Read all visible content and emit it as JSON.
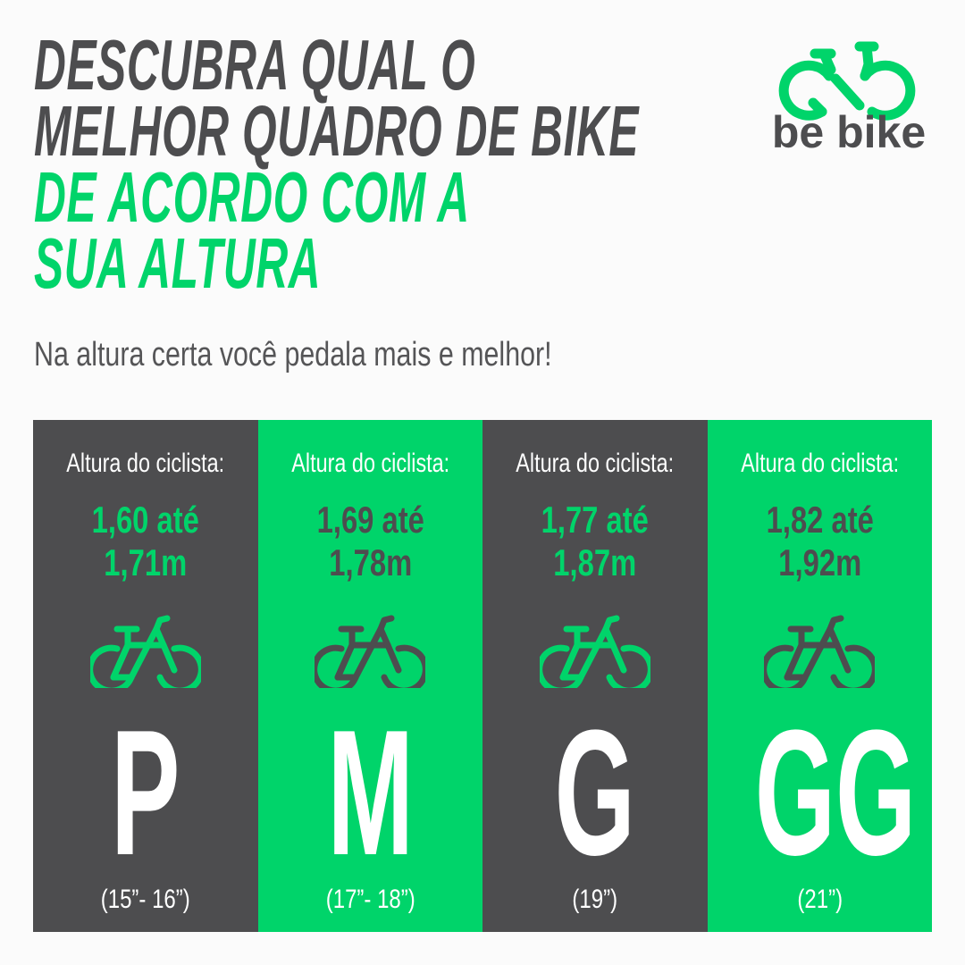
{
  "title": {
    "lines": [
      "DESCUBRA QUAL O",
      "MELHOR QUADRO DE BIKE",
      "DE ACORDO COM A",
      "SUA ALTURA"
    ]
  },
  "subtitle": "Na altura certa você pedala mais e melhor!",
  "logo": {
    "text": "be bike",
    "icon": "bike-infinity-icon"
  },
  "colors": {
    "dark": "#4d4d4f",
    "green": "#00d46a",
    "white": "#ffffff"
  },
  "columns": [
    {
      "label": "Altura do ciclista:",
      "range_line1": "1,60 até",
      "range_line2": "1,71m",
      "size": "P",
      "frame": "(15”- 16”)",
      "theme": "dark",
      "icon": "bicycle-icon"
    },
    {
      "label": "Altura do ciclista:",
      "range_line1": "1,69 até",
      "range_line2": "1,78m",
      "size": "M",
      "frame": "(17”- 18”)",
      "theme": "green",
      "icon": "bicycle-icon"
    },
    {
      "label": "Altura do ciclista:",
      "range_line1": "1,77 até",
      "range_line2": "1,87m",
      "size": "G",
      "frame": "(19”)",
      "theme": "dark",
      "icon": "bicycle-icon"
    },
    {
      "label": "Altura do ciclista:",
      "range_line1": "1,82 até",
      "range_line2": "1,92m",
      "size": "GG",
      "frame": "(21”)",
      "theme": "green",
      "icon": "bicycle-icon"
    }
  ]
}
